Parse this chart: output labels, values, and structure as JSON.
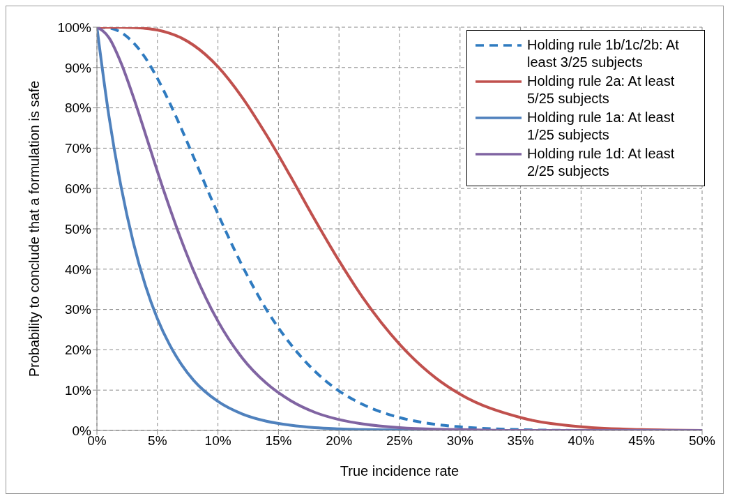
{
  "chart_data": {
    "type": "line",
    "xlabel": "True incidence rate",
    "ylabel": "Probability to conclude that a formulation is safe",
    "x": [
      0,
      1,
      2,
      3,
      4,
      5,
      6,
      7,
      8,
      10,
      12,
      14,
      16,
      18,
      20,
      22,
      25,
      28,
      30,
      35,
      40,
      45,
      50
    ],
    "series": [
      {
        "name": "Holding rule 1b/1c/2b: At least 3/25 subjects",
        "color": "#2f7bc0",
        "line_style": "dashed",
        "values": [
          100,
          99.8,
          98.7,
          96.2,
          92.4,
          87.3,
          81.3,
          74.7,
          67.7,
          53.7,
          40.9,
          30.0,
          21.4,
          14.7,
          9.8,
          6.4,
          3.2,
          1.5,
          0.9,
          0.2,
          0,
          null,
          null
        ]
      },
      {
        "name": "Holding rule 2a: At least 5/25 subjects",
        "color": "#c0504d",
        "values": [
          100,
          100,
          100,
          99.9,
          99.7,
          99.3,
          98.5,
          97.3,
          95.5,
          90.2,
          82.6,
          73.3,
          63.0,
          52.3,
          42.1,
          32.8,
          21.4,
          13.0,
          9.0,
          3.2,
          0.9,
          0.2,
          0
        ]
      },
      {
        "name": "Holding rule 1a: At least 1/25 subjects",
        "color": "#4f81bd",
        "values": [
          100,
          77.8,
          60.4,
          46.7,
          36.0,
          27.7,
          21.3,
          16.3,
          12.4,
          7.2,
          4.1,
          2.3,
          1.3,
          0.7,
          0.4,
          0.2,
          0.1,
          0,
          0,
          0,
          0,
          null,
          null
        ]
      },
      {
        "name": "Holding rule 1d: At least 2/25 subjects",
        "color": "#8064a2",
        "values": [
          100,
          97.4,
          91.1,
          82.8,
          73.6,
          64.2,
          55.3,
          47.0,
          39.5,
          27.1,
          18.0,
          11.7,
          7.4,
          4.5,
          2.7,
          1.6,
          0.7,
          0.3,
          0.2,
          0,
          0,
          0,
          0
        ]
      }
    ],
    "xlim": [
      0,
      50
    ],
    "xticks": [
      {
        "value": 0,
        "label": "0%"
      },
      {
        "value": 5,
        "label": "5%"
      },
      {
        "value": 10,
        "label": "10%"
      },
      {
        "value": 15,
        "label": "15%"
      },
      {
        "value": 20,
        "label": "20%"
      },
      {
        "value": 25,
        "label": "25%"
      },
      {
        "value": 30,
        "label": "30%"
      },
      {
        "value": 35,
        "label": "35%"
      },
      {
        "value": 40,
        "label": "40%"
      },
      {
        "value": 45,
        "label": "45%"
      },
      {
        "value": 50,
        "label": "50%"
      }
    ],
    "ylim": [
      0,
      100
    ],
    "yticks": [
      {
        "value": 0,
        "label": "0%"
      },
      {
        "value": 10,
        "label": "10%"
      },
      {
        "value": 20,
        "label": "20%"
      },
      {
        "value": 30,
        "label": "30%"
      },
      {
        "value": 40,
        "label": "40%"
      },
      {
        "value": 50,
        "label": "50%"
      },
      {
        "value": 60,
        "label": "60%"
      },
      {
        "value": 70,
        "label": "70%"
      },
      {
        "value": 80,
        "label": "80%"
      },
      {
        "value": 90,
        "label": "90%"
      },
      {
        "value": 100,
        "label": "100%"
      }
    ],
    "grid": true,
    "legend": "top right",
    "marker": "none",
    "line_style": "solid"
  }
}
